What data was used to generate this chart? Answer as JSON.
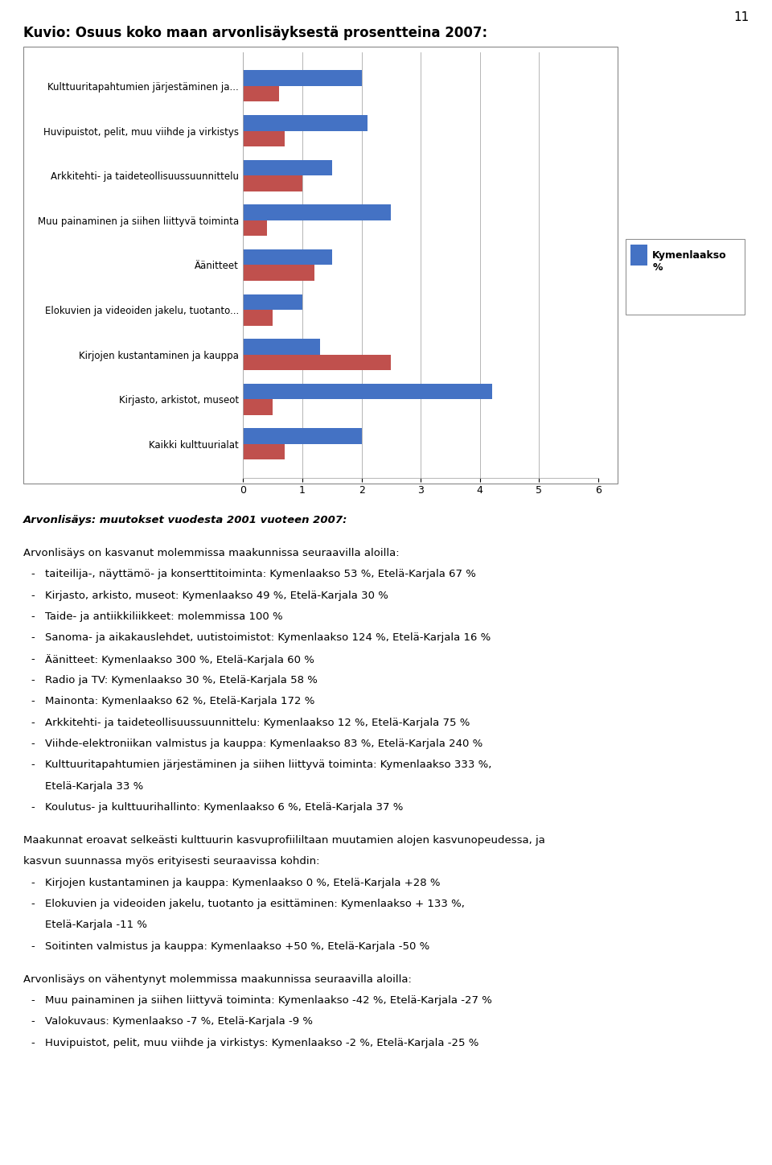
{
  "title": "Kuvio: Osuus koko maan arvonlisäyksestä prosentteina 2007:",
  "page_number": "11",
  "categories": [
    "Kulttuuritapahtumien järjestäminen ja...",
    "Huvipuistot, pelit, muu viihde ja virkistys",
    "Arkkitehti- ja taideteollisuussuunnittelu",
    "Muu painaminen ja siihen liittyvä toiminta",
    "Äänitteet",
    "Elokuvien ja videoiden jakelu, tuotanto...",
    "Kirjojen kustantaminen ja kauppa",
    "Kirjasto, arkistot, museot",
    "Kaikki kulttuurialat"
  ],
  "kymenlaakso": [
    2.0,
    2.1,
    1.5,
    2.5,
    1.5,
    1.0,
    1.3,
    4.2,
    2.0
  ],
  "etela_karjala": [
    0.6,
    0.7,
    1.0,
    0.4,
    1.2,
    0.5,
    2.5,
    0.5,
    0.7
  ],
  "color_kymenlaakso": "#4472C4",
  "color_etela_karjala": "#C0504D",
  "legend_label": "Kymenlaakso\n%",
  "xlim": [
    0,
    6
  ],
  "xticks": [
    0,
    1,
    2,
    3,
    4,
    5,
    6
  ],
  "bar_height": 0.35,
  "body_lines": [
    {
      "text": "Arvonlisäys: muutokset vuodesta 2001 vuoteen 2007:",
      "bold": true,
      "italic": true,
      "type": "heading"
    },
    {
      "text": "",
      "type": "blank"
    },
    {
      "text": "Arvonlisäys on kasvanut molemmissa maakunnissa seuraavilla aloilla:",
      "type": "normal"
    },
    {
      "text": "taiteilija-, näyttämö- ja konserttitoiminta: Kymenlaakso 53 %, Etelä-Karjala 67 %",
      "type": "bullet"
    },
    {
      "text": "Kirjasto, arkisto, museot: Kymenlaakso 49 %, Etelä-Karjala 30 %",
      "type": "bullet"
    },
    {
      "text": "Taide- ja antiikkiliikkeet: molemmissa 100 %",
      "type": "bullet"
    },
    {
      "text": "Sanoma- ja aikakauslehdet, uutistoimistot: Kymenlaakso 124 %, Etelä-Karjala 16 %",
      "type": "bullet"
    },
    {
      "text": "Äänitteet: Kymenlaakso 300 %, Etelä-Karjala 60 %",
      "type": "bullet"
    },
    {
      "text": "Radio ja TV: Kymenlaakso 30 %, Etelä-Karjala 58 %",
      "type": "bullet"
    },
    {
      "text": "Mainonta: Kymenlaakso 62 %, Etelä-Karjala 172 %",
      "type": "bullet"
    },
    {
      "text": "Arkkitehti- ja taideteollisuussuunnittelu: Kymenlaakso 12 %, Etelä-Karjala 75 %",
      "type": "bullet"
    },
    {
      "text": "Viihde-elektroniikan valmistus ja kauppa: Kymenlaakso 83 %, Etelä-Karjala 240 %",
      "type": "bullet"
    },
    {
      "text": "Kulttuuritapahtumien järjestäminen ja siihen liittyvä toiminta: Kymenlaakso 333 %,",
      "type": "bullet"
    },
    {
      "text": "Etelä-Karjala 33 %",
      "type": "continuation"
    },
    {
      "text": "Koulutus- ja kulttuurihallinto: Kymenlaakso 6 %, Etelä-Karjala 37 %",
      "type": "bullet"
    },
    {
      "text": "",
      "type": "blank"
    },
    {
      "text": "Maakunnat eroavat selkeästi kulttuurin kasvuprofiililtaan muutamien alojen kasvunopeudessa, ja kasvun suunnassa myös erityisesti seuraavissa kohdin:",
      "type": "normal_wrap"
    },
    {
      "text": "Kirjojen kustantaminen ja kauppa: Kymenlaakso 0 %, Etelä-Karjala +28 %",
      "type": "bullet"
    },
    {
      "text": "Elokuvien ja videoiden jakelu, tuotanto ja esittäminen: Kymenlaakso + 133 %,",
      "type": "bullet"
    },
    {
      "text": "Etelä-Karjala -11 %",
      "type": "continuation"
    },
    {
      "text": "Soitinten valmistus ja kauppa: Kymenlaakso +50 %, Etelä-Karjala -50 %",
      "type": "bullet"
    },
    {
      "text": "",
      "type": "blank"
    },
    {
      "text": "Arvonlisäys on vähentynyt molemmissa maakunnissa seuraavilla aloilla:",
      "type": "normal"
    },
    {
      "text": "Muu painaminen ja siihen liittyvä toiminta: Kymenlaakso -42 %, Etelä-Karjala -27 %",
      "type": "bullet"
    },
    {
      "text": "Valokuvaus: Kymenlaakso -7 %, Etelä-Karjala -9 %",
      "type": "bullet"
    },
    {
      "text": "Huvipuistot, pelit, muu viihde ja virkistys: Kymenlaakso -2 %, Etelä-Karjala -25 %",
      "type": "bullet"
    }
  ]
}
